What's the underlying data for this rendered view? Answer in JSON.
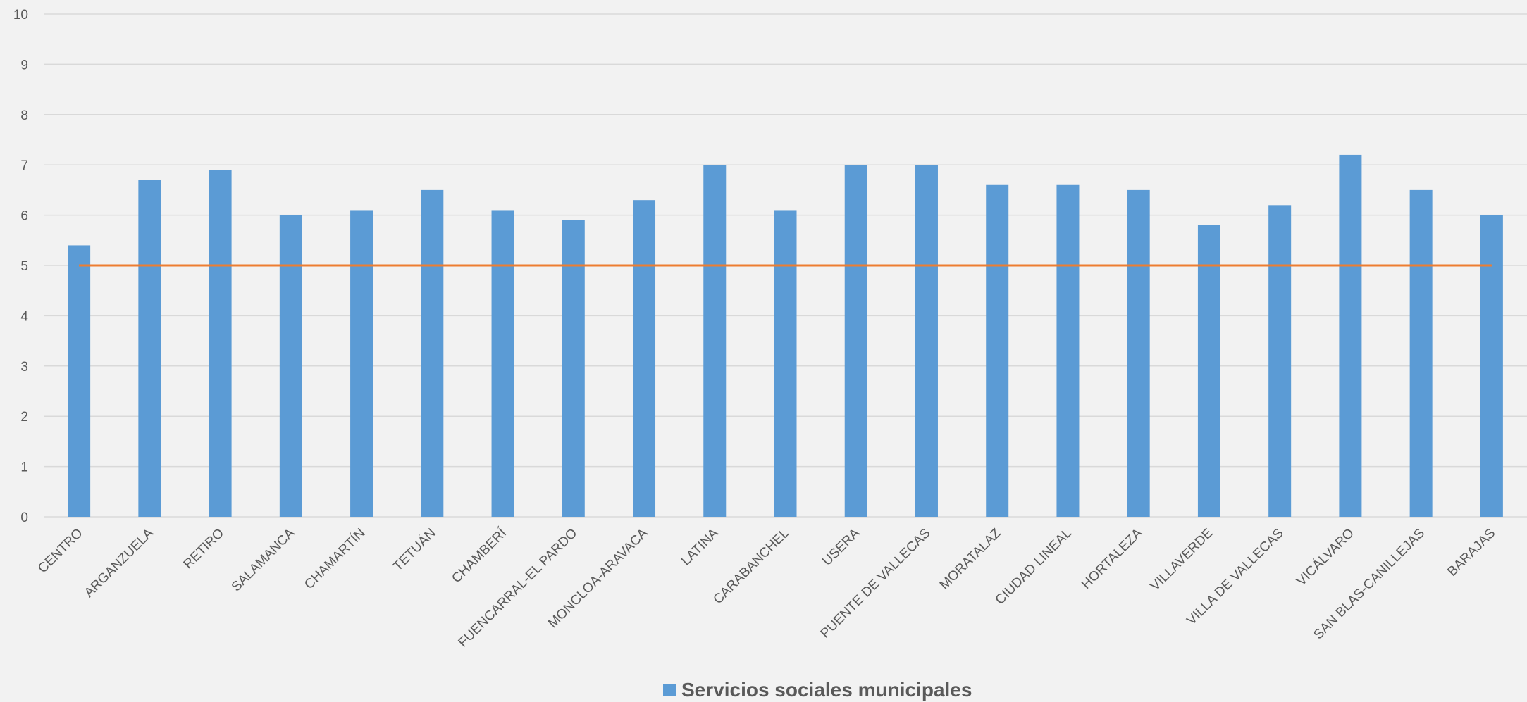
{
  "chart_data": {
    "type": "bar",
    "categories": [
      "CENTRO",
      "ARGANZUELA",
      "RETIRO",
      "SALAMANCA",
      "CHAMARTÍN",
      "TETUÁN",
      "CHAMBERÍ",
      "FUENCARRAL-EL PARDO",
      "MONCLOA-ARAVACA",
      "LATINA",
      "CARABANCHEL",
      "USERA",
      "PUENTE DE VALLECAS",
      "MORATALAZ",
      "CIUDAD LINEAL",
      "HORTALEZA",
      "VILLAVERDE",
      "VILLA DE VALLECAS",
      "VICÁLVARO",
      "SAN BLAS-CANILLEJAS",
      "BARAJAS"
    ],
    "series": [
      {
        "name": "Servicios sociales municipales",
        "color": "#5b9bd5",
        "values": [
          5.4,
          6.7,
          6.9,
          6.0,
          6.1,
          6.5,
          6.1,
          5.9,
          6.3,
          7.0,
          6.1,
          7.0,
          7.0,
          6.6,
          6.6,
          6.5,
          5.8,
          6.2,
          7.2,
          6.5,
          6.0
        ]
      }
    ],
    "reference_line": {
      "value": 5,
      "color": "#ed7d31"
    },
    "ylim": [
      0,
      10
    ],
    "yticks": [
      0,
      1,
      2,
      3,
      4,
      5,
      6,
      7,
      8,
      9,
      10
    ],
    "grid": true,
    "legend_position": "bottom",
    "title": "",
    "xlabel": "",
    "ylabel": ""
  }
}
